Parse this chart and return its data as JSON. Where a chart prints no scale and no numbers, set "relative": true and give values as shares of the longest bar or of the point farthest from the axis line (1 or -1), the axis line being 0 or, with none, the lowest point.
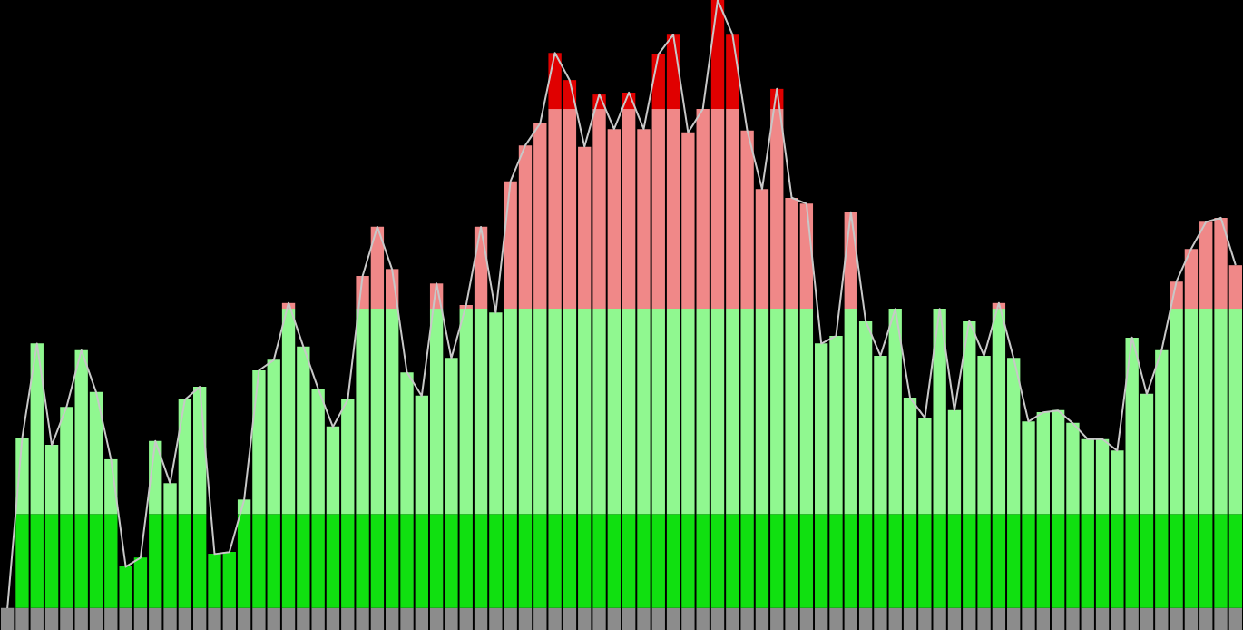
{
  "chart_data": [
    {
      "type": "bar",
      "relative": true,
      "stacked": true,
      "grid": false,
      "tick_labels": false,
      "categories": [
        null,
        null,
        null,
        null,
        null,
        null,
        null,
        null,
        null,
        null,
        null,
        null,
        null,
        null,
        null,
        null,
        null,
        null,
        null,
        null,
        null,
        null,
        null,
        null,
        null,
        null,
        null,
        null,
        null,
        null,
        null,
        null,
        null,
        null,
        null,
        null,
        null,
        null,
        null,
        null,
        null,
        null,
        null,
        null,
        null,
        null,
        null,
        null,
        null,
        null,
        null,
        null,
        null,
        null,
        null,
        null,
        null,
        null,
        null,
        null,
        null,
        null,
        null,
        null,
        null,
        null,
        null,
        null,
        null,
        null,
        null,
        null,
        null,
        null,
        null,
        null,
        null,
        null,
        null,
        null,
        null,
        null,
        null,
        null
      ],
      "series": [
        {
          "color": "#8c8c8c",
          "values": [
            0.035,
            0.035,
            0.035,
            0.035,
            0.035,
            0.035,
            0.035,
            0.035,
            0.035,
            0.035,
            0.035,
            0.035,
            0.035,
            0.035,
            0.035,
            0.035,
            0.035,
            0.035,
            0.035,
            0.035,
            0.035,
            0.035,
            0.035,
            0.035,
            0.035,
            0.035,
            0.035,
            0.035,
            0.035,
            0.035,
            0.035,
            0.035,
            0.035,
            0.035,
            0.035,
            0.035,
            0.035,
            0.035,
            0.035,
            0.035,
            0.035,
            0.035,
            0.035,
            0.035,
            0.035,
            0.035,
            0.035,
            0.035,
            0.035,
            0.035,
            0.035,
            0.035,
            0.035,
            0.035,
            0.035,
            0.035,
            0.035,
            0.035,
            0.035,
            0.035,
            0.035,
            0.035,
            0.035,
            0.035,
            0.035,
            0.035,
            0.035,
            0.035,
            0.035,
            0.035,
            0.035,
            0.035,
            0.035,
            0.035,
            0.035,
            0.035,
            0.035,
            0.035,
            0.035,
            0.035,
            0.035,
            0.035,
            0.035,
            0.035
          ]
        },
        {
          "color": "#10e010",
          "values": [
            0,
            0.149,
            0.149,
            0.149,
            0.149,
            0.149,
            0.149,
            0.149,
            0.066,
            0.08,
            0.149,
            0.149,
            0.149,
            0.149,
            0.086,
            0.089,
            0.149,
            0.149,
            0.149,
            0.149,
            0.149,
            0.149,
            0.149,
            0.149,
            0.149,
            0.149,
            0.149,
            0.149,
            0.149,
            0.149,
            0.149,
            0.149,
            0.149,
            0.149,
            0.149,
            0.149,
            0.149,
            0.149,
            0.149,
            0.149,
            0.149,
            0.149,
            0.149,
            0.149,
            0.149,
            0.149,
            0.149,
            0.149,
            0.149,
            0.149,
            0.149,
            0.149,
            0.149,
            0.149,
            0.149,
            0.149,
            0.149,
            0.149,
            0.149,
            0.149,
            0.149,
            0.149,
            0.149,
            0.149,
            0.149,
            0.149,
            0.149,
            0.149,
            0.149,
            0.149,
            0.149,
            0.149,
            0.149,
            0.149,
            0.149,
            0.149,
            0.149,
            0.149,
            0.149,
            0.149,
            0.149,
            0.149,
            0.149,
            0.149
          ]
        },
        {
          "color": "#90f890",
          "values": [
            0,
            0.121,
            0.271,
            0.11,
            0.17,
            0.26,
            0.194,
            0.087,
            0,
            0,
            0.116,
            0.049,
            0.182,
            0.202,
            0,
            0,
            0.023,
            0.228,
            0.245,
            0.326,
            0.266,
            0.199,
            0.139,
            0.182,
            0.326,
            0.326,
            0.326,
            0.225,
            0.188,
            0.326,
            0.248,
            0.326,
            0.326,
            0.32,
            0.326,
            0.326,
            0.326,
            0.326,
            0.326,
            0.326,
            0.326,
            0.326,
            0.326,
            0.326,
            0.326,
            0.326,
            0.326,
            0.326,
            0.326,
            0.326,
            0.326,
            0.326,
            0.326,
            0.326,
            0.326,
            0.271,
            0.283,
            0.326,
            0.306,
            0.251,
            0.326,
            0.185,
            0.153,
            0.326,
            0.165,
            0.306,
            0.251,
            0.326,
            0.248,
            0.147,
            0.162,
            0.165,
            0.145,
            0.119,
            0.119,
            0.101,
            0.28,
            0.191,
            0.26,
            0.326,
            0.326,
            0.326,
            0.326,
            0.326
          ]
        },
        {
          "color": "#f08888",
          "values": [
            0,
            0,
            0,
            0,
            0,
            0,
            0,
            0,
            0,
            0,
            0,
            0,
            0,
            0,
            0,
            0,
            0,
            0,
            0,
            0.009,
            0,
            0,
            0,
            0,
            0.052,
            0.13,
            0.063,
            0,
            0,
            0.04,
            0,
            0.006,
            0.13,
            0,
            0.202,
            0.259,
            0.294,
            0.317,
            0.317,
            0.257,
            0.317,
            0.285,
            0.317,
            0.285,
            0.317,
            0.317,
            0.28,
            0.317,
            0.317,
            0.317,
            0.283,
            0.19,
            0.317,
            0.176,
            0.167,
            0,
            0,
            0.153,
            0,
            0,
            0,
            0,
            0,
            0,
            0,
            0,
            0,
            0.009,
            0,
            0,
            0,
            0,
            0,
            0,
            0,
            0,
            0,
            0,
            0,
            0.043,
            0.095,
            0.138,
            0.144,
            0.069
          ]
        },
        {
          "color": "#e00000",
          "values": [
            0,
            0,
            0,
            0,
            0,
            0,
            0,
            0,
            0,
            0,
            0,
            0,
            0,
            0,
            0,
            0,
            0,
            0,
            0,
            0,
            0,
            0,
            0,
            0,
            0,
            0,
            0,
            0,
            0,
            0,
            0,
            0,
            0,
            0,
            0,
            0,
            0,
            0.089,
            0.046,
            0,
            0.023,
            0,
            0.026,
            0,
            0.087,
            0.118,
            0,
            0,
            0.173,
            0.118,
            0,
            0,
            0.032,
            0,
            0,
            0,
            0,
            0,
            0,
            0,
            0,
            0,
            0,
            0,
            0,
            0,
            0,
            0,
            0,
            0,
            0,
            0,
            0,
            0,
            0,
            0,
            0,
            0,
            0,
            0,
            0,
            0,
            0,
            0
          ]
        }
      ]
    },
    {
      "type": "line",
      "relative": true,
      "grid": false,
      "tick_labels": false,
      "line_style": "solid",
      "categories": [
        null,
        null,
        null,
        null,
        null,
        null,
        null,
        null,
        null,
        null,
        null,
        null,
        null,
        null,
        null,
        null,
        null,
        null,
        null,
        null,
        null,
        null,
        null,
        null,
        null,
        null,
        null,
        null,
        null,
        null,
        null,
        null,
        null,
        null,
        null,
        null,
        null,
        null,
        null,
        null,
        null,
        null,
        null,
        null,
        null,
        null,
        null,
        null,
        null,
        null,
        null,
        null,
        null,
        null,
        null,
        null,
        null,
        null,
        null,
        null,
        null,
        null,
        null,
        null,
        null,
        null,
        null,
        null,
        null,
        null,
        null,
        null,
        null,
        null,
        null,
        null,
        null,
        null,
        null,
        null,
        null,
        null,
        null,
        null
      ],
      "series": [
        {
          "color": "#c8c8c8",
          "values": [
            0,
            0.28,
            0.435,
            0.268,
            0.331,
            0.424,
            0.355,
            0.245,
            0.068,
            0.083,
            0.275,
            0.205,
            0.343,
            0.364,
            0.089,
            0.092,
            0.178,
            0.391,
            0.408,
            0.502,
            0.43,
            0.361,
            0.298,
            0.343,
            0.546,
            0.627,
            0.557,
            0.388,
            0.349,
            0.534,
            0.411,
            0.498,
            0.627,
            0.486,
            0.702,
            0.761,
            0.797,
            0.913,
            0.868,
            0.759,
            0.845,
            0.788,
            0.848,
            0.788,
            0.911,
            0.943,
            0.782,
            0.821,
            1,
            0.943,
            0.785,
            0.689,
            0.854,
            0.675,
            0.665,
            0.435,
            0.448,
            0.651,
            0.472,
            0.415,
            0.492,
            0.346,
            0.313,
            0.492,
            0.325,
            0.472,
            0.415,
            0.502,
            0.411,
            0.307,
            0.322,
            0.325,
            0.304,
            0.278,
            0.278,
            0.259,
            0.445,
            0.352,
            0.424,
            0.537,
            0.591,
            0.635,
            0.642,
            0.564
          ]
        }
      ]
    }
  ]
}
